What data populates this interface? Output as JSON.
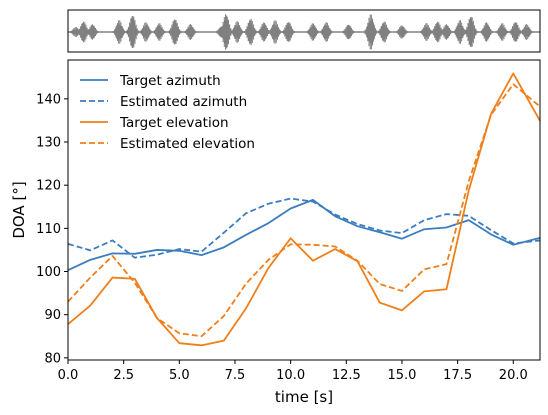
{
  "chart_data": [
    {
      "type": "area",
      "title": "",
      "xlabel": "",
      "ylabel": "",
      "xlim": [
        0,
        21.2
      ],
      "color": "#808080",
      "description_series": "audio waveform",
      "bursts": [
        {
          "x": 0.35,
          "a": 0.25
        },
        {
          "x": 0.7,
          "a": 0.55
        },
        {
          "x": 1.1,
          "a": 0.4
        },
        {
          "x": 2.3,
          "a": 0.6
        },
        {
          "x": 2.9,
          "a": 0.9
        },
        {
          "x": 3.5,
          "a": 0.5
        },
        {
          "x": 4.1,
          "a": 0.45
        },
        {
          "x": 4.8,
          "a": 0.7
        },
        {
          "x": 5.5,
          "a": 0.4
        },
        {
          "x": 6.9,
          "a": 0.3
        },
        {
          "x": 7.1,
          "a": 0.95
        },
        {
          "x": 7.6,
          "a": 0.55
        },
        {
          "x": 8.2,
          "a": 0.7
        },
        {
          "x": 8.8,
          "a": 0.5
        },
        {
          "x": 9.3,
          "a": 0.6
        },
        {
          "x": 9.9,
          "a": 0.55
        },
        {
          "x": 11.0,
          "a": 0.45
        },
        {
          "x": 11.6,
          "a": 0.5
        },
        {
          "x": 12.6,
          "a": 0.4
        },
        {
          "x": 13.6,
          "a": 0.9
        },
        {
          "x": 14.2,
          "a": 0.55
        },
        {
          "x": 15.0,
          "a": 0.35
        },
        {
          "x": 16.1,
          "a": 0.45
        },
        {
          "x": 16.6,
          "a": 0.55
        },
        {
          "x": 17.0,
          "a": 0.4
        },
        {
          "x": 17.6,
          "a": 0.6
        },
        {
          "x": 18.1,
          "a": 0.85
        },
        {
          "x": 18.8,
          "a": 0.5
        },
        {
          "x": 19.5,
          "a": 0.45
        },
        {
          "x": 20.1,
          "a": 0.55
        },
        {
          "x": 20.6,
          "a": 0.4
        }
      ]
    },
    {
      "type": "line",
      "title": "",
      "xlabel": "time [s]",
      "ylabel": "DOA [°]",
      "xlim": [
        0,
        21.2
      ],
      "ylim": [
        79.5,
        149
      ],
      "xticks": [
        0.0,
        2.5,
        5.0,
        7.5,
        10.0,
        12.5,
        15.0,
        17.5,
        20.0
      ],
      "xtick_labels": [
        "0.0",
        "2.5",
        "5.0",
        "7.5",
        "10.0",
        "12.5",
        "15.0",
        "17.5",
        "20.0"
      ],
      "yticks": [
        80,
        90,
        100,
        110,
        120,
        130,
        140
      ],
      "ytick_labels": [
        "80",
        "90",
        "100",
        "110",
        "120",
        "130",
        "140"
      ],
      "grid": false,
      "legend_position": "top-left",
      "x": [
        0,
        1,
        2,
        3,
        4,
        5,
        6,
        7,
        8,
        9,
        10,
        11,
        12,
        13,
        14,
        15,
        16,
        17,
        18,
        19,
        20,
        21.2
      ],
      "series": [
        {
          "name": "Target azimuth",
          "color": "#3b7dbf",
          "style": "solid",
          "values": [
            100.3,
            102.7,
            104.2,
            104.1,
            105.0,
            104.8,
            103.8,
            105.6,
            108.5,
            111.2,
            114.6,
            116.6,
            112.8,
            110.5,
            109.1,
            107.6,
            109.8,
            110.2,
            111.9,
            108.6,
            106.2,
            107.8
          ]
        },
        {
          "name": "Estimated azimuth",
          "color": "#3b7dbf",
          "style": "dashed",
          "values": [
            106.4,
            104.9,
            107.2,
            103.2,
            103.9,
            105.2,
            104.6,
            109.0,
            113.5,
            115.7,
            116.9,
            116.2,
            113.2,
            111.0,
            109.5,
            108.9,
            111.9,
            113.3,
            112.9,
            109.6,
            106.5,
            107.2
          ]
        },
        {
          "name": "Target elevation",
          "color": "#f07f1a",
          "style": "solid",
          "values": [
            87.8,
            92.1,
            98.6,
            98.3,
            89.2,
            83.4,
            82.9,
            84.0,
            91.5,
            100.8,
            107.7,
            102.5,
            105.2,
            102.4,
            92.8,
            91.0,
            95.4,
            95.9,
            118.8,
            136.5,
            145.9,
            134.9
          ]
        },
        {
          "name": "Estimated elevation",
          "color": "#f07f1a",
          "style": "dashed",
          "values": [
            93.0,
            98.6,
            103.6,
            97.4,
            89.2,
            85.7,
            85.0,
            89.7,
            97.2,
            102.7,
            106.3,
            106.2,
            105.8,
            102.5,
            97.1,
            95.5,
            100.5,
            101.7,
            120.9,
            136.3,
            143.4,
            138.2
          ]
        }
      ]
    }
  ]
}
